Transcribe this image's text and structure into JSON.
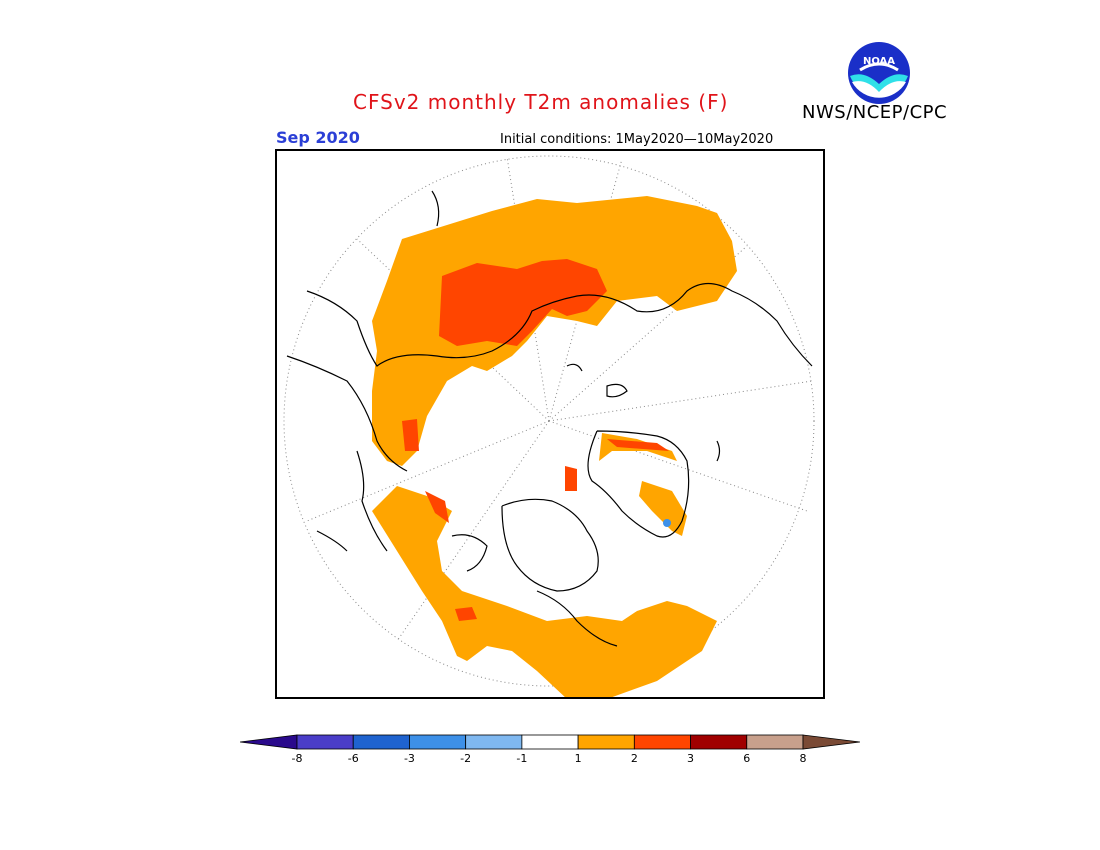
{
  "header": {
    "title": "CFSv2 monthly T2m anomalies (F)",
    "agency": "NWS/NCEP/CPC",
    "month": "Sep 2020",
    "initial_conditions": "Initial conditions: 1May2020—10May2020",
    "logo_text": "NOAA"
  },
  "map": {
    "projection": "north-polar-stereographic",
    "regions": [
      {
        "name": "Eurasia / Siberia",
        "anomaly_class": "1 to 2",
        "color": "#ffa500"
      },
      {
        "name": "Central Siberia",
        "anomaly_class": "2 to 3",
        "color": "#ff4500"
      },
      {
        "name": "Alaska / Canada",
        "anomaly_class": "1 to 2",
        "color": "#ffa500"
      },
      {
        "name": "Southern Greenland",
        "anomaly_class": "1 to 2",
        "color": "#ffa500"
      },
      {
        "name": "Western Canada small patch",
        "anomaly_class": "2 to 3",
        "color": "#ff4500"
      },
      {
        "name": "Arctic Ocean",
        "anomaly_class": "-1 to 1",
        "color": "#ffffff"
      }
    ]
  },
  "colorbar": {
    "labels": [
      "-8",
      "-6",
      "-3",
      "-2",
      "-1",
      "1",
      "2",
      "3",
      "6",
      "8"
    ],
    "colors": [
      "#2a0a8c",
      "#4a3dc8",
      "#1f63cf",
      "#3d90e8",
      "#7fb8f0",
      "#ffffff",
      "#ffa500",
      "#ff4500",
      "#a00000",
      "#c8a08c",
      "#7a4a35"
    ]
  }
}
